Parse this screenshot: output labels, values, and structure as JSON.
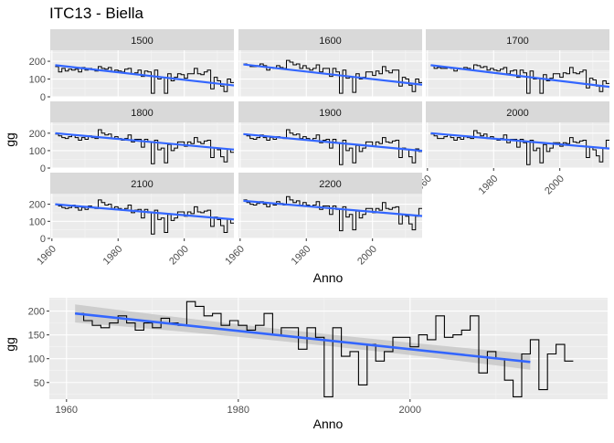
{
  "chart_data": [
    {
      "type": "line",
      "title": "ITC13 - Biella",
      "subtitle": "",
      "xlabel": "Anno",
      "ylabel": "gg",
      "xlim": [
        1959.5,
        2015
      ],
      "ylim": [
        0,
        262
      ],
      "x_ticks": [
        1960,
        1980,
        2000
      ],
      "x_tick_labels": [
        "1960",
        "1980",
        "2000"
      ],
      "y_ticks": [
        0,
        100,
        200
      ],
      "y_tick_labels": [
        "0",
        "100",
        "200"
      ],
      "grid": true,
      "style": {
        "panel_bg": "#EBEBEB",
        "strip_bg": "#D9D9D9",
        "step_color": "#000000",
        "trend_color": "#3366FF"
      },
      "panels": [
        {
          "label": "1500",
          "x_start": 1961,
          "values": [
            170,
            140,
            160,
            145,
            155,
            150,
            155,
            140,
            165,
            150,
            160,
            155,
            145,
            170,
            160,
            155,
            165,
            140,
            150,
            145,
            140,
            155,
            160,
            130,
            135,
            150,
            115,
            145,
            140,
            20,
            150,
            100,
            110,
            20,
            130,
            90,
            110,
            130,
            125,
            105,
            130,
            130,
            160,
            130,
            125,
            140,
            150,
            45,
            110,
            90,
            60,
            30,
            100,
            80
          ],
          "trend": {
            "y_start": 178,
            "y_end": 64
          }
        },
        {
          "label": "1600",
          "x_start": 1961,
          "values": [
            185,
            180,
            170,
            170,
            175,
            185,
            175,
            150,
            165,
            160,
            175,
            165,
            160,
            205,
            195,
            180,
            185,
            160,
            175,
            160,
            150,
            160,
            180,
            140,
            160,
            160,
            115,
            160,
            140,
            20,
            150,
            105,
            110,
            25,
            130,
            100,
            110,
            140,
            140,
            120,
            145,
            130,
            170,
            145,
            135,
            150,
            150,
            60,
            110,
            100,
            65,
            30,
            100,
            80
          ],
          "trend": {
            "y_start": 182,
            "y_end": 68
          }
        },
        {
          "label": "1700",
          "x_start": 1961,
          "values": [
            175,
            160,
            165,
            160,
            160,
            165,
            160,
            145,
            160,
            155,
            165,
            160,
            150,
            180,
            175,
            165,
            170,
            150,
            160,
            150,
            145,
            155,
            165,
            130,
            145,
            150,
            110,
            150,
            135,
            20,
            145,
            100,
            105,
            20,
            125,
            90,
            105,
            130,
            130,
            110,
            135,
            130,
            165,
            135,
            130,
            140,
            150,
            50,
            105,
            95,
            60,
            30,
            90,
            75
          ],
          "trend": {
            "y_start": 178,
            "y_end": 56
          }
        },
        {
          "label": "1800",
          "x_start": 1961,
          "values": [
            195,
            185,
            175,
            170,
            180,
            190,
            175,
            160,
            175,
            165,
            185,
            175,
            170,
            220,
            200,
            190,
            195,
            170,
            180,
            170,
            160,
            170,
            190,
            150,
            165,
            165,
            120,
            165,
            150,
            25,
            160,
            105,
            115,
            30,
            135,
            100,
            115,
            150,
            150,
            125,
            150,
            140,
            175,
            150,
            140,
            155,
            160,
            60,
            115,
            105,
            65,
            35,
            110,
            90
          ],
          "trend": {
            "y_start": 200,
            "y_end": 106
          }
        },
        {
          "label": "1900",
          "x_start": 1961,
          "values": [
            195,
            185,
            170,
            165,
            175,
            190,
            175,
            160,
            175,
            165,
            180,
            175,
            170,
            220,
            200,
            190,
            195,
            170,
            180,
            170,
            160,
            170,
            190,
            145,
            160,
            165,
            115,
            165,
            145,
            20,
            160,
            100,
            115,
            30,
            130,
            95,
            115,
            150,
            150,
            125,
            150,
            140,
            175,
            150,
            145,
            155,
            160,
            60,
            115,
            105,
            65,
            30,
            110,
            95
          ],
          "trend": {
            "y_start": 195,
            "y_end": 99
          }
        },
        {
          "label": "2000",
          "x_start": 1961,
          "values": [
            195,
            185,
            170,
            170,
            180,
            190,
            175,
            160,
            175,
            165,
            180,
            175,
            170,
            215,
            200,
            185,
            195,
            170,
            180,
            170,
            160,
            170,
            190,
            145,
            165,
            165,
            120,
            165,
            145,
            20,
            160,
            100,
            115,
            30,
            135,
            95,
            115,
            145,
            145,
            125,
            145,
            140,
            175,
            150,
            145,
            155,
            160,
            60,
            120,
            105,
            70,
            35,
            115,
            160
          ],
          "trend": {
            "y_start": 200,
            "y_end": 112
          }
        },
        {
          "label": "2100",
          "x_start": 1961,
          "values": [
            200,
            190,
            180,
            175,
            180,
            195,
            180,
            165,
            180,
            170,
            190,
            180,
            175,
            225,
            210,
            195,
            200,
            175,
            185,
            175,
            165,
            175,
            195,
            150,
            165,
            170,
            120,
            170,
            150,
            25,
            165,
            110,
            120,
            35,
            140,
            105,
            120,
            155,
            155,
            130,
            155,
            145,
            185,
            155,
            150,
            160,
            165,
            70,
            125,
            110,
            75,
            35,
            115,
            90
          ],
          "trend": {
            "y_start": 200,
            "y_end": 111
          }
        },
        {
          "label": "2200",
          "x_start": 1961,
          "values": [
            225,
            210,
            200,
            195,
            205,
            215,
            200,
            185,
            205,
            195,
            215,
            205,
            195,
            245,
            225,
            210,
            220,
            195,
            210,
            195,
            185,
            195,
            215,
            170,
            190,
            190,
            140,
            190,
            170,
            45,
            185,
            125,
            140,
            50,
            160,
            120,
            140,
            175,
            175,
            150,
            175,
            165,
            210,
            175,
            170,
            180,
            185,
            85,
            140,
            130,
            85,
            50,
            130,
            175
          ],
          "trend": {
            "y_start": 220,
            "y_end": 131
          }
        }
      ]
    },
    {
      "type": "line",
      "title": "",
      "xlabel": "Anno",
      "ylabel": "gg",
      "xlim": [
        1958,
        2023
      ],
      "ylim": [
        15,
        228
      ],
      "x_ticks": [
        1960,
        1980,
        2000
      ],
      "x_tick_labels": [
        "1960",
        "1980",
        "2000"
      ],
      "y_ticks": [
        50,
        100,
        150,
        200
      ],
      "y_tick_labels": [
        "50",
        "100",
        "150",
        "200"
      ],
      "grid": true,
      "style": {
        "panel_bg": "#EBEBEB",
        "step_color": "#000000",
        "trend_color": "#3366FF",
        "band_color": "#C3C3C3"
      },
      "x_start": 1961,
      "values": [
        195,
        180,
        170,
        165,
        175,
        190,
        175,
        160,
        175,
        165,
        185,
        175,
        170,
        220,
        210,
        190,
        195,
        170,
        180,
        170,
        160,
        170,
        195,
        150,
        165,
        165,
        120,
        165,
        145,
        20,
        165,
        105,
        115,
        45,
        130,
        95,
        115,
        145,
        145,
        125,
        150,
        140,
        190,
        145,
        150,
        160,
        190,
        70,
        115,
        100,
        55,
        20,
        110,
        140,
        35,
        110,
        130,
        95
      ],
      "trend": {
        "x0": 1961,
        "y0": 195,
        "x1": 2014,
        "y1": 93
      },
      "band": {
        "upper_start": 214,
        "lower_start": 176,
        "upper_mid": 155,
        "lower_mid": 135,
        "upper_end": 110,
        "lower_end": 77
      }
    }
  ]
}
